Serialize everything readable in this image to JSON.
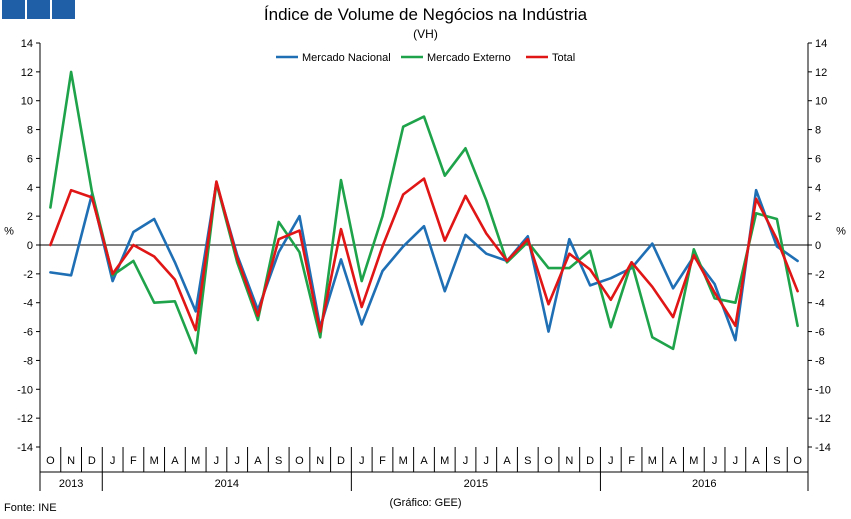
{
  "header": {
    "title": "Índice de Volume de Negócios na Indústria",
    "subtitle": "(VH)",
    "logo_color": "#1f5fa8"
  },
  "footer": {
    "source": "Fonte: INE",
    "credit": "(Gráfico: GEE)"
  },
  "chart_data": {
    "type": "line",
    "title": "Índice de Volume de Negócios na Indústria",
    "subtitle": "(VH)",
    "ylabel_left": "%",
    "ylabel_right": "%",
    "ylim": [
      -14,
      14
    ],
    "yticks": [
      -14,
      -12,
      -10,
      -8,
      -6,
      -4,
      -2,
      0,
      2,
      4,
      6,
      8,
      10,
      12,
      14
    ],
    "categories": [
      "O",
      "N",
      "D",
      "J",
      "F",
      "M",
      "A",
      "M",
      "J",
      "J",
      "A",
      "S",
      "O",
      "N",
      "D",
      "J",
      "F",
      "M",
      "A",
      "M",
      "J",
      "J",
      "A",
      "S",
      "O",
      "N",
      "D",
      "J",
      "F",
      "M",
      "A",
      "M",
      "J",
      "J",
      "A",
      "S",
      "O"
    ],
    "years": [
      {
        "label": "2013",
        "start": 0,
        "end": 2
      },
      {
        "label": "2014",
        "start": 3,
        "end": 14
      },
      {
        "label": "2015",
        "start": 15,
        "end": 26
      },
      {
        "label": "2016",
        "start": 27,
        "end": 36
      }
    ],
    "legend_position": "top-center",
    "series": [
      {
        "name": "Mercado Nacional",
        "color": "#1f6fb5",
        "values": [
          -1.9,
          -2.1,
          3.5,
          -2.5,
          0.9,
          1.8,
          -1.2,
          -4.6,
          4.3,
          -0.7,
          -4.5,
          -0.5,
          2.0,
          -5.7,
          -1.0,
          -5.5,
          -1.8,
          -0.1,
          1.3,
          -3.2,
          0.7,
          -0.6,
          -1.1,
          0.6,
          -6.0,
          0.4,
          -2.8,
          -2.3,
          -1.6,
          0.1,
          -3.0,
          -0.8,
          -2.7,
          -6.6,
          3.8,
          -0.1,
          -1.1
        ]
      },
      {
        "name": "Mercado Externo",
        "color": "#1fa34a",
        "values": [
          2.6,
          12.0,
          3.7,
          -2.1,
          -1.1,
          -4.0,
          -3.9,
          -7.5,
          4.3,
          -1.2,
          -5.2,
          1.6,
          -0.5,
          -6.4,
          4.5,
          -2.5,
          2.0,
          8.2,
          8.9,
          4.8,
          6.7,
          3.1,
          -1.2,
          0.2,
          -1.6,
          -1.6,
          -0.4,
          -5.7,
          -1.2,
          -6.4,
          -7.2,
          -0.3,
          -3.7,
          -4.0,
          2.2,
          1.8,
          -5.6
        ]
      },
      {
        "name": "Total",
        "color": "#e01515",
        "values": [
          0.0,
          3.8,
          3.3,
          -2.0,
          0.0,
          -0.8,
          -2.4,
          -5.9,
          4.4,
          -0.9,
          -4.9,
          0.4,
          1.0,
          -6.0,
          1.1,
          -4.3,
          -0.1,
          3.5,
          4.6,
          0.3,
          3.4,
          0.8,
          -1.1,
          0.4,
          -4.1,
          -0.6,
          -1.7,
          -3.8,
          -1.2,
          -2.9,
          -5.0,
          -0.7,
          -3.3,
          -5.6,
          3.2,
          0.4,
          -3.2
        ]
      }
    ]
  }
}
